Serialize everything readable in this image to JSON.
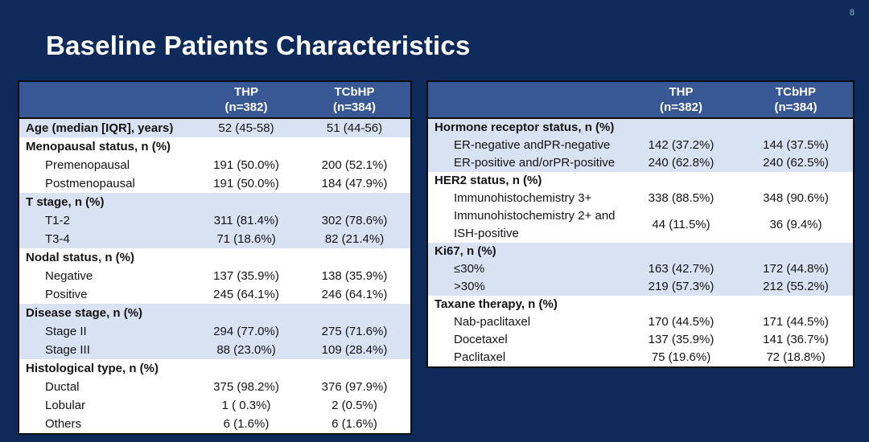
{
  "slide": {
    "title": "Baseline Patients Characteristics",
    "page_number": "8"
  },
  "colors": {
    "background": "#0e2a5a",
    "table_header_bg": "#375795",
    "row_shade_bg": "#d9e2f3",
    "row_plain_bg": "#ffffff",
    "table_border": "#0d0d0d",
    "header_text": "#ffffff",
    "body_text": "#141414",
    "page_number_text": "#9fb0cf"
  },
  "left_table": {
    "columns": [
      {
        "name": "THP",
        "n": "(n=382)"
      },
      {
        "name": "TCbHP",
        "n": "(n=384)"
      }
    ],
    "rows": [
      {
        "label": "Age (median [IQR], years)",
        "bold": true,
        "indent": false,
        "shade": true,
        "thp": "52 (45-58)",
        "tcbhp": "51 (44-56)"
      },
      {
        "label": "Menopausal status, n (%)",
        "bold": true,
        "indent": false,
        "shade": false,
        "thp": "",
        "tcbhp": ""
      },
      {
        "label": "Premenopausal",
        "bold": false,
        "indent": true,
        "shade": false,
        "thp": "191 (50.0%)",
        "tcbhp": "200 (52.1%)"
      },
      {
        "label": "Postmenopausal",
        "bold": false,
        "indent": true,
        "shade": false,
        "thp": "191 (50.0%)",
        "tcbhp": "184 (47.9%)"
      },
      {
        "label": "T stage, n (%)",
        "bold": true,
        "indent": false,
        "shade": true,
        "thp": "",
        "tcbhp": ""
      },
      {
        "label": "T1-2",
        "bold": false,
        "indent": true,
        "shade": true,
        "thp": "311 (81.4%)",
        "tcbhp": "302 (78.6%)"
      },
      {
        "label": "T3-4",
        "bold": false,
        "indent": true,
        "shade": true,
        "thp": "71 (18.6%)",
        "tcbhp": "82 (21.4%)"
      },
      {
        "label": "Nodal status, n (%)",
        "bold": true,
        "indent": false,
        "shade": false,
        "thp": "",
        "tcbhp": ""
      },
      {
        "label": "Negative",
        "bold": false,
        "indent": true,
        "shade": false,
        "thp": "137 (35.9%)",
        "tcbhp": "138 (35.9%)"
      },
      {
        "label": "Positive",
        "bold": false,
        "indent": true,
        "shade": false,
        "thp": "245 (64.1%)",
        "tcbhp": "246 (64.1%)"
      },
      {
        "label": "Disease stage, n (%)",
        "bold": true,
        "indent": false,
        "shade": true,
        "thp": "",
        "tcbhp": ""
      },
      {
        "label": "Stage II",
        "bold": false,
        "indent": true,
        "shade": true,
        "thp": "294 (77.0%)",
        "tcbhp": "275 (71.6%)"
      },
      {
        "label": "Stage III",
        "bold": false,
        "indent": true,
        "shade": true,
        "thp": "88 (23.0%)",
        "tcbhp": "109 (28.4%)"
      },
      {
        "label": "Histological type, n (%)",
        "bold": true,
        "indent": false,
        "shade": false,
        "thp": "",
        "tcbhp": ""
      },
      {
        "label": "Ductal",
        "bold": false,
        "indent": true,
        "shade": false,
        "thp": "375 (98.2%)",
        "tcbhp": "376 (97.9%)"
      },
      {
        "label": "Lobular",
        "bold": false,
        "indent": true,
        "shade": false,
        "thp": "1 ( 0.3%)",
        "tcbhp": "2 (0.5%)"
      },
      {
        "label": "Others",
        "bold": false,
        "indent": true,
        "shade": false,
        "thp": "6 (1.6%)",
        "tcbhp": "6 (1.6%)"
      }
    ]
  },
  "right_table": {
    "columns": [
      {
        "name": "THP",
        "n": "(n=382)"
      },
      {
        "name": "TCbHP",
        "n": "(n=384)"
      }
    ],
    "rows": [
      {
        "label": "Hormone receptor status, n (%)",
        "bold": true,
        "indent": false,
        "shade": true,
        "thp": "",
        "tcbhp": ""
      },
      {
        "label": "ER-negative andPR-negative",
        "bold": false,
        "indent": true,
        "shade": true,
        "thp": "142 (37.2%)",
        "tcbhp": "144 (37.5%)"
      },
      {
        "label": "ER-positive and/orPR-positive",
        "bold": false,
        "indent": true,
        "shade": true,
        "thp": "240 (62.8%)",
        "tcbhp": "240 (62.5%)"
      },
      {
        "label": "HER2 status, n (%)",
        "bold": true,
        "indent": false,
        "shade": false,
        "thp": "",
        "tcbhp": ""
      },
      {
        "label": "Immunohistochemistry 3+",
        "bold": false,
        "indent": true,
        "shade": false,
        "thp": "338 (88.5%)",
        "tcbhp": "348 (90.6%)"
      },
      {
        "label": "Immunohistochemistry 2+ and ISH-positive",
        "bold": false,
        "indent": true,
        "shade": false,
        "thp": "44 (11.5%)",
        "tcbhp": "36 (9.4%)"
      },
      {
        "label": "Ki67, n (%)",
        "bold": true,
        "indent": false,
        "shade": true,
        "thp": "",
        "tcbhp": ""
      },
      {
        "label": "≤30%",
        "bold": false,
        "indent": true,
        "shade": true,
        "thp": "163 (42.7%)",
        "tcbhp": "172 (44.8%)"
      },
      {
        "label": ">30%",
        "bold": false,
        "indent": true,
        "shade": true,
        "thp": "219 (57.3%)",
        "tcbhp": "212 (55.2%)"
      },
      {
        "label": "Taxane therapy, n (%)",
        "bold": true,
        "indent": false,
        "shade": false,
        "thp": "",
        "tcbhp": ""
      },
      {
        "label": "Nab-paclitaxel",
        "bold": false,
        "indent": true,
        "shade": false,
        "thp": "170 (44.5%)",
        "tcbhp": "171 (44.5%)"
      },
      {
        "label": "Docetaxel",
        "bold": false,
        "indent": true,
        "shade": false,
        "thp": "137 (35.9%)",
        "tcbhp": "141 (36.7%)"
      },
      {
        "label": "Paclitaxel",
        "bold": false,
        "indent": true,
        "shade": false,
        "thp": "75 (19.6%)",
        "tcbhp": "72 (18.8%)"
      }
    ]
  }
}
